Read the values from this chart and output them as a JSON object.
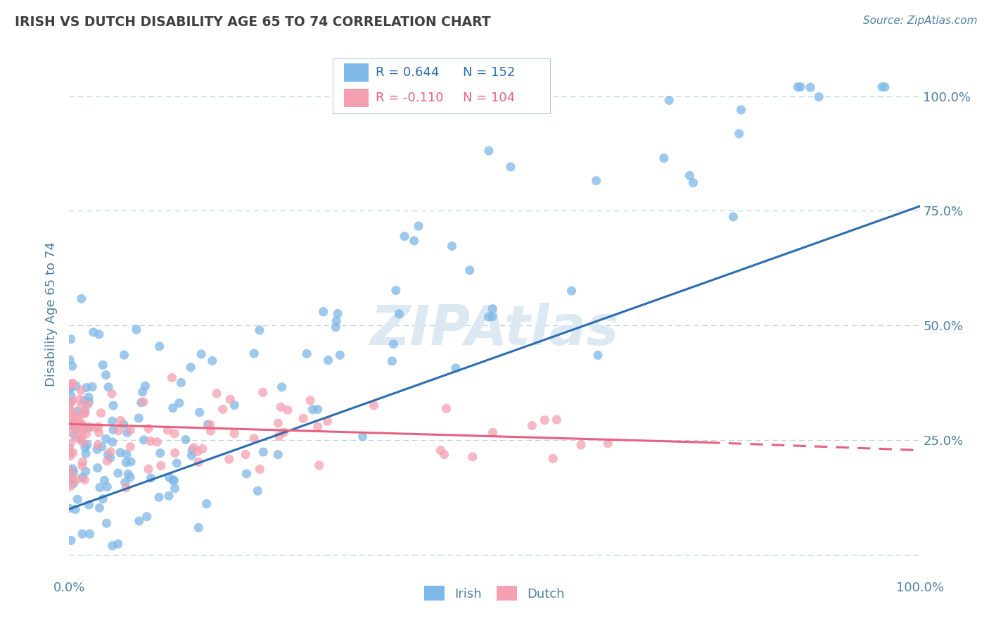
{
  "title": "IRISH VS DUTCH DISABILITY AGE 65 TO 74 CORRELATION CHART",
  "source_text": "Source: ZipAtlas.com",
  "ylabel": "Disability Age 65 to 74",
  "xlim": [
    0.0,
    1.0
  ],
  "ylim": [
    -0.05,
    1.1
  ],
  "yticks": [
    0.0,
    0.25,
    0.5,
    0.75,
    1.0
  ],
  "ytick_labels_right": [
    "",
    "25.0%",
    "50.0%",
    "75.0%",
    "100.0%"
  ],
  "xticks": [
    0.0,
    0.25,
    0.5,
    0.75,
    1.0
  ],
  "xtick_labels": [
    "0.0%",
    "",
    "",
    "",
    "100.0%"
  ],
  "irish_R": 0.644,
  "irish_N": 152,
  "dutch_R": -0.11,
  "dutch_N": 104,
  "irish_color": "#7eb8e8",
  "dutch_color": "#f5a0b0",
  "irish_line_color": "#2b6cb0",
  "dutch_line_color": "#e86080",
  "background_color": "#ffffff",
  "grid_color": "#c0d0e0",
  "title_color": "#404040",
  "axis_label_color": "#5080a0",
  "tick_label_color": "#5080a0",
  "watermark_color": "#dce8f2",
  "legend_label1": "Irish",
  "legend_label2": "Dutch",
  "irish_trend_x0": 0.0,
  "irish_trend_y0": 0.1,
  "irish_trend_x1": 1.0,
  "irish_trend_y1": 0.76,
  "dutch_trend_x0": 0.0,
  "dutch_trend_y0": 0.285,
  "dutch_trend_x1": 0.75,
  "dutch_trend_y1": 0.245,
  "dutch_trend_dash_x0": 0.75,
  "dutch_trend_dash_y0": 0.245,
  "dutch_trend_dash_x1": 1.0,
  "dutch_trend_dash_y1": 0.228
}
